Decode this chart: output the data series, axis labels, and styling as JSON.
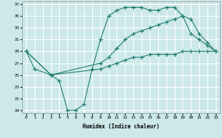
{
  "xlabel": "Humidex (Indice chaleur)",
  "bg_color": "#cce8e8",
  "grid_color": "#ffffff",
  "line_color": "#1a7a6e",
  "xlim": [
    -0.5,
    23.5
  ],
  "ylim": [
    18.5,
    37.5
  ],
  "xticks": [
    0,
    1,
    2,
    3,
    4,
    5,
    6,
    7,
    8,
    9,
    10,
    11,
    12,
    13,
    14,
    15,
    16,
    17,
    18,
    19,
    20,
    21,
    22,
    23
  ],
  "yticks": [
    19,
    21,
    23,
    25,
    27,
    29,
    31,
    33,
    35,
    37
  ],
  "line1_x": [
    0,
    1,
    3,
    4,
    5,
    6,
    7,
    8,
    9,
    10,
    11,
    12,
    13,
    14,
    15,
    16,
    17,
    18,
    19,
    20,
    21,
    22,
    23
  ],
  "line1_y": [
    29,
    26,
    25,
    24,
    19,
    19,
    20,
    26,
    31,
    35,
    36,
    36.5,
    36.5,
    36.5,
    36,
    36,
    36.5,
    36.5,
    35,
    32,
    31,
    30,
    29
  ],
  "line2_x": [
    0,
    3,
    9,
    10,
    11,
    12,
    13,
    14,
    15,
    16,
    17,
    18,
    19,
    20,
    21,
    22,
    23
  ],
  "line2_y": [
    29,
    25,
    27,
    28,
    29.5,
    31,
    32,
    32.5,
    33,
    33.5,
    34,
    34.5,
    35,
    34.5,
    32,
    30.5,
    29
  ],
  "line3_x": [
    0,
    3,
    9,
    10,
    11,
    12,
    13,
    14,
    15,
    16,
    17,
    18,
    19,
    20,
    21,
    22,
    23
  ],
  "line3_y": [
    29,
    25,
    26,
    26.5,
    27,
    27.5,
    28,
    28,
    28.5,
    28.5,
    28.5,
    28.5,
    29,
    29,
    29,
    29,
    29
  ]
}
